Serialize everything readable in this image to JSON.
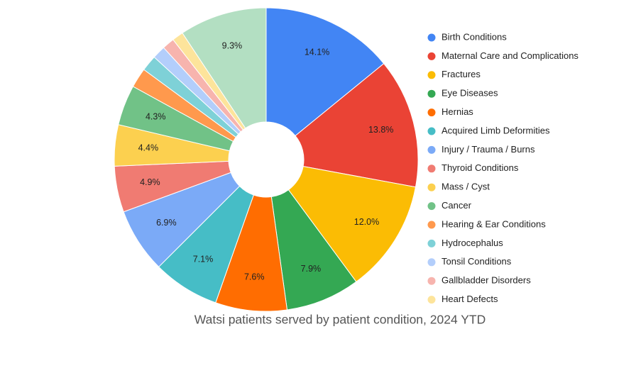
{
  "chart_data": {
    "type": "pie",
    "title": "Watsi patients served by patient condition, 2024 YTD",
    "categories": [
      "Birth Conditions",
      "Maternal Care and Complications",
      "Fractures",
      "Eye Diseases",
      "Hernias",
      "Acquired Limb Deformities",
      "Injury / Trauma / Burns",
      "Thyroid Conditions",
      "Mass / Cyst",
      "Cancer",
      "Hearing & Ear Conditions",
      "Hydrocephalus",
      "Tonsil Conditions",
      "Gallbladder Disorders",
      "Heart Defects",
      null
    ],
    "values": [
      14.1,
      13.8,
      12.0,
      7.9,
      7.6,
      7.1,
      6.9,
      4.9,
      4.4,
      4.3,
      2.1,
      1.7,
      1.4,
      1.3,
      1.2,
      9.3
    ],
    "value_labels": [
      "14.1%",
      "13.8%",
      "12.0%",
      "7.9%",
      "7.6%",
      "7.1%",
      "6.9%",
      "4.9%",
      "4.4%",
      "4.3%",
      null,
      null,
      null,
      null,
      null,
      "9.3%"
    ],
    "colors": [
      "#4285f4",
      "#ea4335",
      "#fbbc04",
      "#34a853",
      "#ff6d01",
      "#46bdc6",
      "#7baaf7",
      "#f07b72",
      "#fcd04f",
      "#71c287",
      "#ff994d",
      "#7ed1d7",
      "#b3cefb",
      "#f7b4ae",
      "#fde49b",
      "#b3dfc2"
    ],
    "donut": true
  }
}
